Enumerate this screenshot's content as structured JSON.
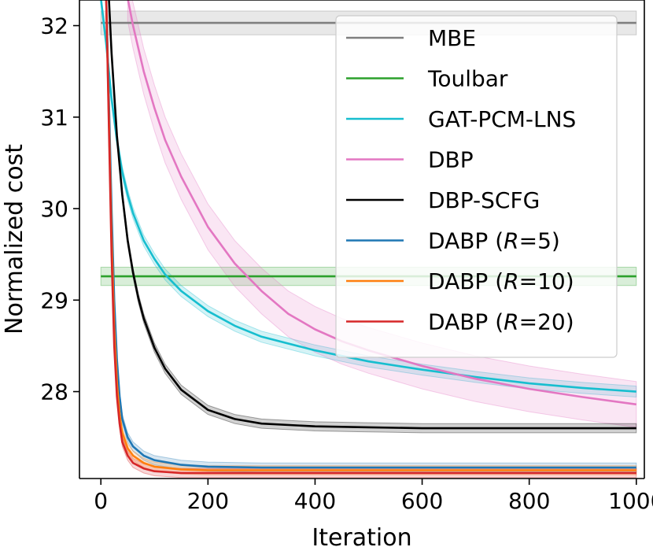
{
  "chart_data": {
    "type": "line",
    "xlabel": "Iteration",
    "ylabel": "Normalized cost",
    "xlim": [
      -40,
      1015
    ],
    "ylim": [
      27.05,
      32.28
    ],
    "xticks": [
      0,
      200,
      400,
      600,
      800,
      1000
    ],
    "xtick_labels": [
      "0",
      "200",
      "400",
      "600",
      "800",
      "1000"
    ],
    "yticks": [
      28,
      29,
      30,
      31,
      32
    ],
    "ytick_labels": [
      "28",
      "29",
      "30",
      "31",
      "32"
    ],
    "grid": false,
    "legend": "top-right",
    "series": [
      {
        "name": "MBE",
        "color": "#7f7f7f",
        "band": 0.13,
        "x": [
          0,
          1000
        ],
        "y": [
          32.03,
          32.03
        ]
      },
      {
        "name": "Toulbar",
        "color": "#2ca02c",
        "band": 0.1,
        "x": [
          0,
          1000
        ],
        "y": [
          29.26,
          29.26
        ]
      },
      {
        "name": "GAT-PCM-LNS",
        "color": "#17becf",
        "band": 0.06,
        "x": [
          0,
          10,
          20,
          30,
          40,
          50,
          60,
          80,
          100,
          120,
          150,
          200,
          250,
          300,
          400,
          500,
          600,
          700,
          800,
          900,
          1000
        ],
        "y": [
          32.3,
          31.8,
          31.2,
          30.75,
          30.4,
          30.15,
          29.95,
          29.65,
          29.45,
          29.28,
          29.1,
          28.88,
          28.72,
          28.6,
          28.45,
          28.33,
          28.24,
          28.16,
          28.09,
          28.04,
          28.0
        ]
      },
      {
        "name": "DBP",
        "color": "#e377c2",
        "band": 0.25,
        "x": [
          50,
          60,
          80,
          100,
          120,
          150,
          200,
          250,
          300,
          350,
          400,
          450,
          500,
          600,
          700,
          800,
          900,
          1000
        ],
        "y": [
          32.3,
          32.0,
          31.5,
          31.1,
          30.75,
          30.35,
          29.8,
          29.4,
          29.1,
          28.85,
          28.68,
          28.55,
          28.45,
          28.28,
          28.14,
          28.03,
          27.94,
          27.86
        ]
      },
      {
        "name": "DBP-SCFG",
        "color": "#000000",
        "band": 0.05,
        "x": [
          15,
          20,
          30,
          40,
          50,
          60,
          70,
          80,
          100,
          120,
          150,
          200,
          250,
          300,
          400,
          500,
          600,
          800,
          1000
        ],
        "y": [
          32.3,
          31.7,
          30.8,
          30.15,
          29.65,
          29.3,
          29.02,
          28.8,
          28.48,
          28.25,
          28.02,
          27.8,
          27.7,
          27.65,
          27.62,
          27.61,
          27.6,
          27.6,
          27.6
        ]
      },
      {
        "name": "DABP (R=5)",
        "color": "#1f77b4",
        "band": 0.05,
        "x": [
          10,
          15,
          20,
          25,
          30,
          35,
          40,
          50,
          60,
          80,
          100,
          150,
          200,
          300,
          400,
          600,
          800,
          1000
        ],
        "y": [
          32.3,
          31.2,
          30.0,
          29.0,
          28.35,
          27.95,
          27.7,
          27.5,
          27.4,
          27.3,
          27.25,
          27.2,
          27.18,
          27.17,
          27.17,
          27.17,
          27.17,
          27.17
        ]
      },
      {
        "name": "DABP (R=10)",
        "color": "#ff7f0e",
        "band": 0.05,
        "x": [
          10,
          15,
          20,
          25,
          30,
          35,
          40,
          50,
          60,
          80,
          100,
          150,
          200,
          300,
          400,
          600,
          800,
          1000
        ],
        "y": [
          32.3,
          31.0,
          29.7,
          28.7,
          28.1,
          27.75,
          27.55,
          27.38,
          27.3,
          27.22,
          27.18,
          27.15,
          27.14,
          27.14,
          27.14,
          27.14,
          27.14,
          27.14
        ]
      },
      {
        "name": "DABP (R=20)",
        "color": "#d62728",
        "band": 0.05,
        "x": [
          10,
          15,
          20,
          25,
          30,
          35,
          40,
          50,
          60,
          80,
          100,
          150,
          200,
          300,
          400,
          600,
          800,
          1000
        ],
        "y": [
          32.3,
          30.9,
          29.5,
          28.5,
          27.95,
          27.65,
          27.45,
          27.3,
          27.22,
          27.16,
          27.13,
          27.11,
          27.11,
          27.11,
          27.11,
          27.11,
          27.11,
          27.11
        ]
      }
    ]
  }
}
